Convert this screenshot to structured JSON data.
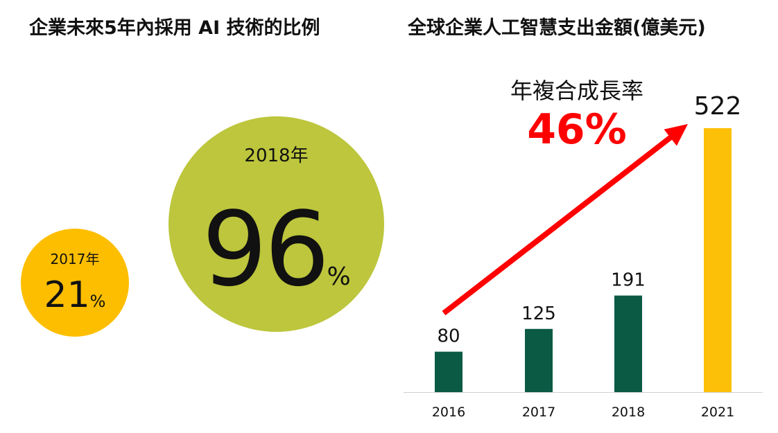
{
  "colors": {
    "bubble_2017": "#FDBE00",
    "bubble_2018": "#BDC63C",
    "bar_historic": "#0A5A44",
    "bar_forecast": "#FDC008",
    "arrow": "#FF0000",
    "axis": "#D0D0D0",
    "text": "#111111"
  },
  "left_panel": {
    "title": "企業未來5年內採用 AI 技術的比例",
    "bubbles": [
      {
        "year_label": "2017年",
        "value": "21",
        "unit": "%",
        "percent": 21
      },
      {
        "year_label": "2018年",
        "value": "96",
        "unit": "%",
        "percent": 96
      }
    ]
  },
  "chart_data": {
    "type": "bar",
    "title": "全球企業人工智慧支出金額(億美元)",
    "categories": [
      "2016",
      "2017",
      "2018",
      "2021"
    ],
    "values": [
      80,
      125,
      191,
      522
    ],
    "value_labels": [
      "80",
      "125",
      "191",
      "522"
    ],
    "bar_colors": [
      "#0A5A44",
      "#0A5A44",
      "#0A5A44",
      "#FDC008"
    ],
    "ylim": [
      0,
      522
    ],
    "grid": false,
    "legend": "none",
    "annotation": {
      "label": "年複合成長率",
      "value": "46%"
    }
  }
}
